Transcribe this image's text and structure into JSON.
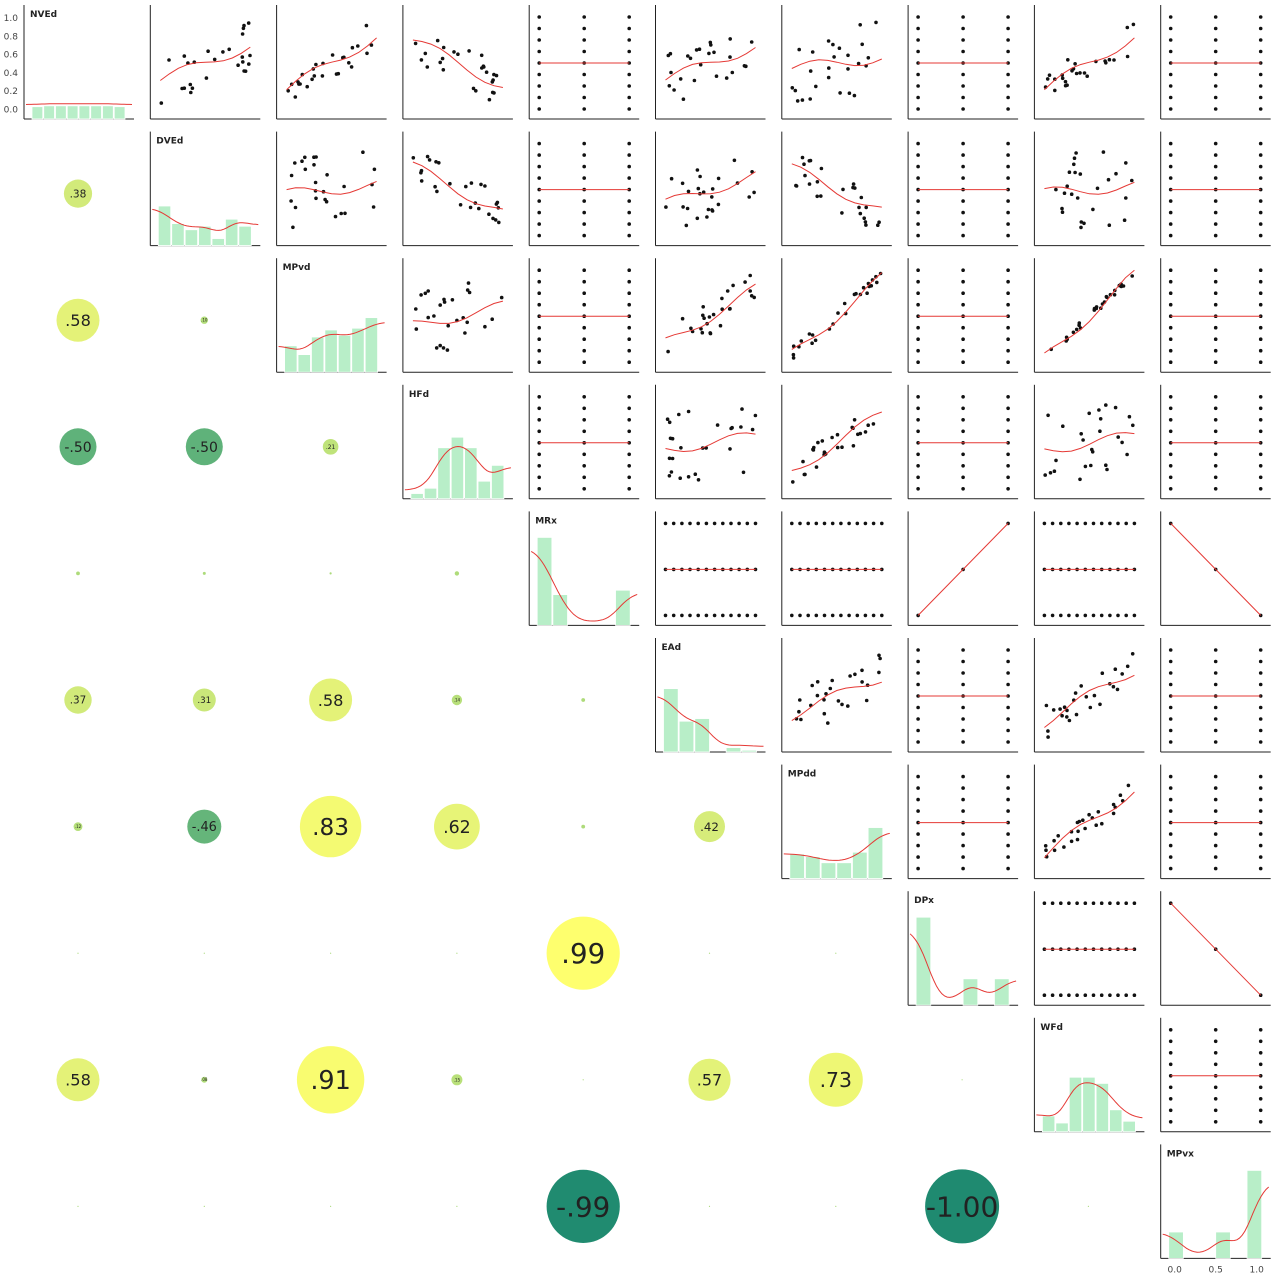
{
  "chart_data": {
    "type": "pair-plot-correlation-matrix",
    "variables": [
      "NVEd",
      "DVEd",
      "MPvd",
      "HFd",
      "MRx",
      "EAd",
      "MPdd",
      "DPx",
      "WFd",
      "MPvx"
    ],
    "y_ticks_first_panel": [
      "1.0",
      "0.8",
      "0.6",
      "0.4",
      "0.2",
      "0.0"
    ],
    "x_ticks_last_panel": [
      "0.0",
      "0.5",
      "1.0"
    ],
    "correlations_lower": [
      {
        "row": "DVEd",
        "col": "NVEd",
        "value": 0.38,
        "label": ".38"
      },
      {
        "row": "MPvd",
        "col": "NVEd",
        "value": 0.58,
        "label": ".58"
      },
      {
        "row": "MPvd",
        "col": "DVEd",
        "value": 0.1,
        "label": ".10"
      },
      {
        "row": "HFd",
        "col": "NVEd",
        "value": -0.5,
        "label": "-.50"
      },
      {
        "row": "HFd",
        "col": "DVEd",
        "value": -0.5,
        "label": "-.50"
      },
      {
        "row": "HFd",
        "col": "MPvd",
        "value": 0.21,
        "label": ".21"
      },
      {
        "row": "MRx",
        "col": "NVEd",
        "value": 0.05,
        "label": ""
      },
      {
        "row": "MRx",
        "col": "DVEd",
        "value": 0.04,
        "label": ""
      },
      {
        "row": "MRx",
        "col": "MPvd",
        "value": 0.03,
        "label": ""
      },
      {
        "row": "MRx",
        "col": "HFd",
        "value": 0.06,
        "label": ""
      },
      {
        "row": "EAd",
        "col": "NVEd",
        "value": 0.37,
        "label": ".37"
      },
      {
        "row": "EAd",
        "col": "DVEd",
        "value": 0.31,
        "label": ".31"
      },
      {
        "row": "EAd",
        "col": "MPvd",
        "value": 0.58,
        "label": ".58"
      },
      {
        "row": "EAd",
        "col": "HFd",
        "value": 0.14,
        "label": ".14"
      },
      {
        "row": "EAd",
        "col": "MRx",
        "value": 0.05,
        "label": ""
      },
      {
        "row": "MPdd",
        "col": "NVEd",
        "value": 0.12,
        "label": ".12"
      },
      {
        "row": "MPdd",
        "col": "DVEd",
        "value": -0.46,
        "label": "-.46"
      },
      {
        "row": "MPdd",
        "col": "MPvd",
        "value": 0.83,
        "label": ".83"
      },
      {
        "row": "MPdd",
        "col": "HFd",
        "value": 0.62,
        "label": ".62"
      },
      {
        "row": "MPdd",
        "col": "MRx",
        "value": 0.05,
        "label": ""
      },
      {
        "row": "MPdd",
        "col": "EAd",
        "value": 0.42,
        "label": ".42"
      },
      {
        "row": "DPx",
        "col": "NVEd",
        "value": 0.0,
        "label": ""
      },
      {
        "row": "DPx",
        "col": "DVEd",
        "value": 0.0,
        "label": ""
      },
      {
        "row": "DPx",
        "col": "MPvd",
        "value": 0.0,
        "label": ""
      },
      {
        "row": "DPx",
        "col": "HFd",
        "value": 0.0,
        "label": ""
      },
      {
        "row": "DPx",
        "col": "MRx",
        "value": 0.99,
        "label": ".99"
      },
      {
        "row": "DPx",
        "col": "EAd",
        "value": 0.0,
        "label": ""
      },
      {
        "row": "DPx",
        "col": "MPdd",
        "value": 0.0,
        "label": ""
      },
      {
        "row": "WFd",
        "col": "NVEd",
        "value": 0.58,
        "label": ".58"
      },
      {
        "row": "WFd",
        "col": "DVEd",
        "value": 0.08,
        "label": ".08"
      },
      {
        "row": "WFd",
        "col": "MPvd",
        "value": 0.91,
        "label": ".91"
      },
      {
        "row": "WFd",
        "col": "HFd",
        "value": 0.15,
        "label": ".15"
      },
      {
        "row": "WFd",
        "col": "MRx",
        "value": 0.0,
        "label": ""
      },
      {
        "row": "WFd",
        "col": "EAd",
        "value": 0.57,
        "label": ".57"
      },
      {
        "row": "WFd",
        "col": "MPdd",
        "value": 0.73,
        "label": ".73"
      },
      {
        "row": "WFd",
        "col": "DPx",
        "value": 0.0,
        "label": ""
      },
      {
        "row": "MPvx",
        "col": "NVEd",
        "value": 0.0,
        "label": ""
      },
      {
        "row": "MPvx",
        "col": "DVEd",
        "value": 0.0,
        "label": ""
      },
      {
        "row": "MPvx",
        "col": "MPvd",
        "value": 0.0,
        "label": ""
      },
      {
        "row": "MPvx",
        "col": "HFd",
        "value": 0.0,
        "label": ""
      },
      {
        "row": "MPvx",
        "col": "MRx",
        "value": -0.99,
        "label": "-.99"
      },
      {
        "row": "MPvx",
        "col": "EAd",
        "value": 0.0,
        "label": ""
      },
      {
        "row": "MPvx",
        "col": "MPdd",
        "value": 0.0,
        "label": ""
      },
      {
        "row": "MPvx",
        "col": "DPx",
        "value": -1.0,
        "label": "-1.00"
      },
      {
        "row": "MPvx",
        "col": "WFd",
        "value": 0.0,
        "label": ""
      }
    ],
    "histograms": {
      "NVEd": [
        0.14,
        0.15,
        0.15,
        0.15,
        0.15,
        0.15,
        0.15,
        0.14
      ],
      "DVEd": [
        0.45,
        0.25,
        0.18,
        0.22,
        0.08,
        0.3,
        0.22
      ],
      "MPvd": [
        0.3,
        0.2,
        0.4,
        0.48,
        0.42,
        0.5,
        0.62
      ],
      "HFd": [
        0.06,
        0.12,
        0.58,
        0.7,
        0.58,
        0.2,
        0.38
      ],
      "MRx": [
        1.0,
        0.35,
        0.0,
        0.0,
        0.0,
        0.4
      ],
      "EAd": [
        0.72,
        0.35,
        0.38,
        0.0,
        0.05,
        0.02
      ],
      "MPdd": [
        0.28,
        0.25,
        0.18,
        0.18,
        0.3,
        0.58
      ],
      "DPx": [
        1.0,
        0.0,
        0.0,
        0.3,
        0.0,
        0.3
      ],
      "WFd": [
        0.18,
        0.1,
        0.62,
        0.62,
        0.55,
        0.25,
        0.12
      ],
      "MPvx": [
        0.3,
        0.0,
        0.0,
        0.3,
        0.0,
        1.0
      ]
    },
    "colors": {
      "histogram": "#b8eec8",
      "kde": "#e53935",
      "scatter_points": "#111111",
      "fit_line": "#e53935",
      "corr_colormap": [
        "#1f8a70",
        "#5fb27a",
        "#a8d97a",
        "#dff07a",
        "#ffff6e"
      ]
    },
    "grid": false
  }
}
